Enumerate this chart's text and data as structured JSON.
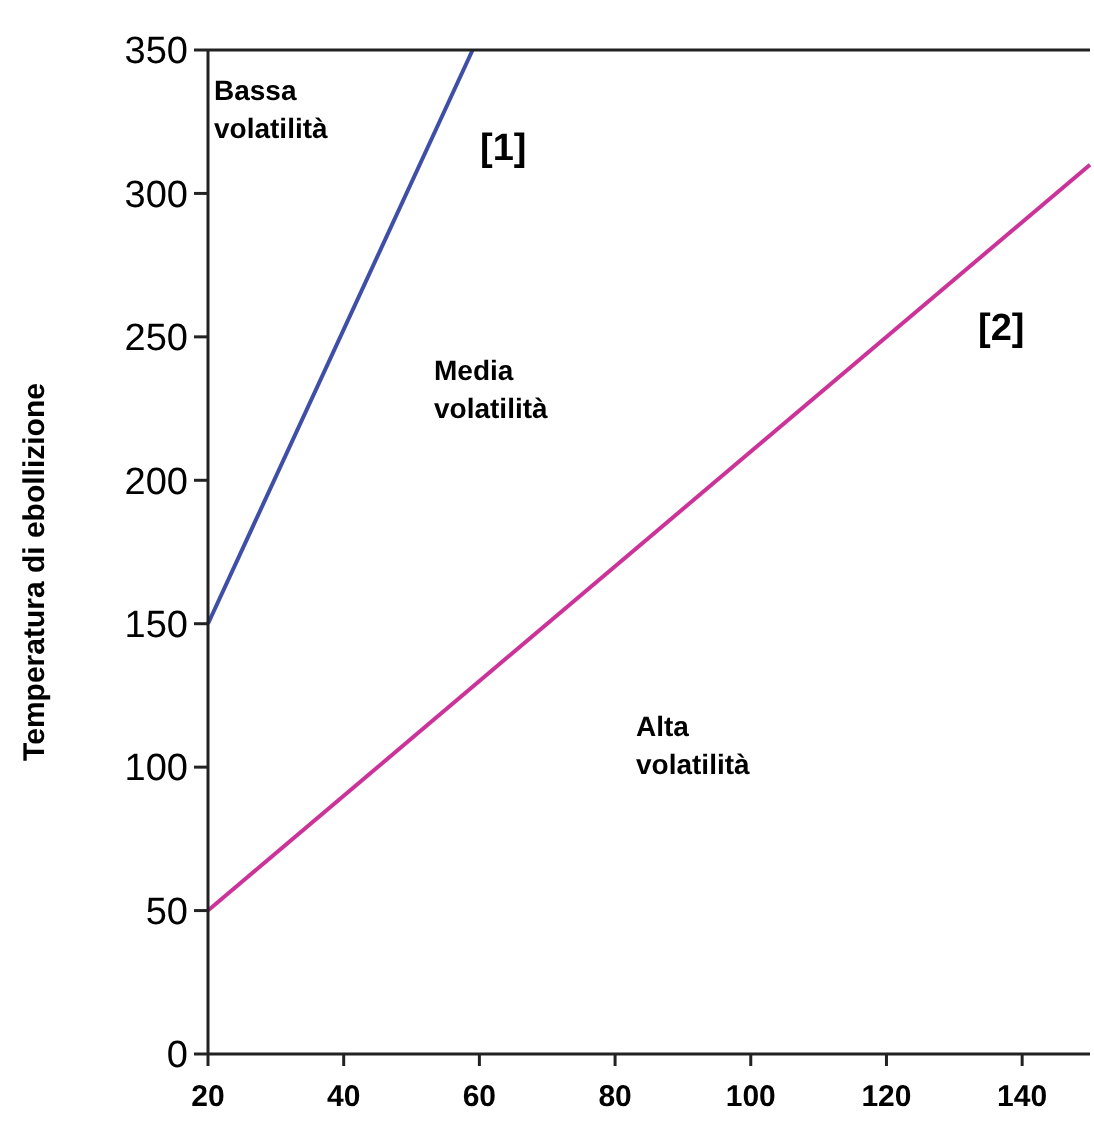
{
  "chart_data": {
    "type": "line",
    "ylabel": "Temperatura di ebollizione",
    "xlim": [
      20,
      150
    ],
    "xticks": [
      20,
      40,
      60,
      80,
      100,
      120,
      140
    ],
    "ylim": [
      0,
      350
    ],
    "yticks": [
      0,
      50,
      100,
      150,
      200,
      250,
      300,
      350
    ],
    "grid": false,
    "marker": "none",
    "line_style": "solid",
    "series": [
      {
        "color": "#3f4fa8",
        "x": [
          20,
          59
        ],
        "values": [
          150,
          350
        ]
      },
      {
        "color": "#cc3399",
        "x": [
          20,
          150
        ],
        "values": [
          50,
          310
        ]
      }
    ],
    "annotations": [
      "Bassa\nvolatilità",
      "[1]",
      "Media\nvolatilità",
      "[2]",
      "Alta\nvolatilità"
    ]
  }
}
